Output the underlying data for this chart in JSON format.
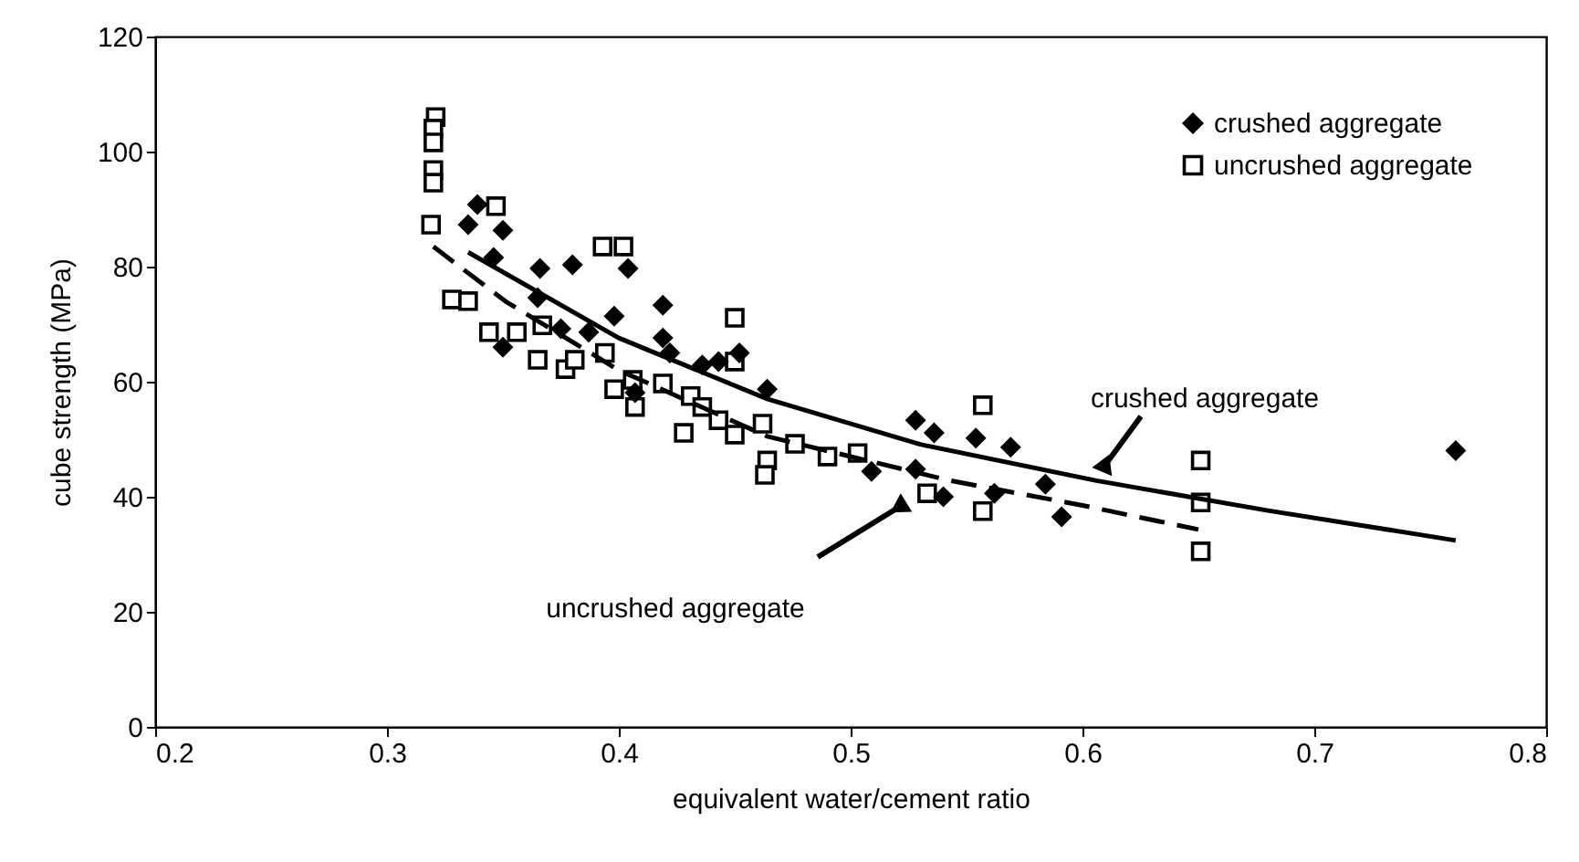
{
  "chart_data": {
    "type": "scatter",
    "xlabel": "equivalent water/cement ratio",
    "ylabel": "cube strength (MPa)",
    "xlim": [
      0.2,
      0.8
    ],
    "xticks": [
      0.2,
      0.3,
      0.4,
      0.5,
      0.6,
      0.7,
      0.8
    ],
    "ylim": [
      0,
      120
    ],
    "yticks": [
      0,
      20,
      40,
      60,
      80,
      100,
      120
    ],
    "grid": false,
    "legend": "top right",
    "series": [
      {
        "name": "crushed aggregate",
        "color": "#000000",
        "marker": "diamond",
        "x": [
          0.339,
          0.335,
          0.35,
          0.346,
          0.366,
          0.38,
          0.404,
          0.365,
          0.398,
          0.419,
          0.35,
          0.375,
          0.387,
          0.419,
          0.422,
          0.407,
          0.436,
          0.443,
          0.452,
          0.464,
          0.528,
          0.536,
          0.554,
          0.569,
          0.528,
          0.509,
          0.54,
          0.562,
          0.584,
          0.591,
          0.761
        ],
        "values": [
          90.8,
          87.3,
          86.3,
          81.6,
          79.7,
          80.3,
          79.7,
          74.6,
          71.4,
          73.3,
          66,
          69.2,
          68.6,
          67.6,
          65,
          58.1,
          62.9,
          63.5,
          65,
          58.7,
          53.3,
          51.1,
          50.2,
          48.6,
          44.8,
          44.4,
          40,
          40.6,
          42.2,
          36.5,
          48
        ]
      },
      {
        "name": "uncrushed aggregate",
        "color": "#000000",
        "marker": "square",
        "x": [
          0.321,
          0.32,
          0.32,
          0.32,
          0.32,
          0.319,
          0.347,
          0.328,
          0.335,
          0.393,
          0.402,
          0.45,
          0.344,
          0.356,
          0.367,
          0.365,
          0.377,
          0.381,
          0.394,
          0.398,
          0.406,
          0.407,
          0.419,
          0.431,
          0.436,
          0.443,
          0.428,
          0.45,
          0.462,
          0.464,
          0.463,
          0.45,
          0.557,
          0.557,
          0.533,
          0.476,
          0.49,
          0.503,
          0.651,
          0.651,
          0.651
        ],
        "values": [
          106,
          104,
          101.6,
          96.8,
          94.6,
          87.3,
          90.5,
          74.3,
          74,
          83.5,
          83.5,
          71.1,
          68.6,
          68.6,
          69.8,
          63.8,
          62.2,
          63.8,
          65,
          58.7,
          60.3,
          55.6,
          59.7,
          57.5,
          55.6,
          53.3,
          51.1,
          50.8,
          52.7,
          46.3,
          43.8,
          63.5,
          55.9,
          37.5,
          40.6,
          49.2,
          47,
          47.6,
          46.3,
          39,
          30.5
        ]
      },
      {
        "type": "line",
        "color": "#000000",
        "line_style": "solid",
        "x": [
          0.335,
          0.4,
          0.464,
          0.53,
          0.606,
          0.68,
          0.761
        ],
        "values": [
          82.5,
          67.6,
          57,
          49.1,
          42.8,
          37.6,
          32.4
        ]
      },
      {
        "type": "line",
        "color": "#000000",
        "line_style": "dashed",
        "x": [
          0.32,
          0.351,
          0.4,
          0.464,
          0.543,
          0.6,
          0.65
        ],
        "values": [
          83.5,
          74,
          62,
          50.5,
          42.8,
          38.5,
          34.3
        ]
      }
    ],
    "annotations": [
      "crushed aggregate",
      "uncrushed aggregate"
    ]
  }
}
